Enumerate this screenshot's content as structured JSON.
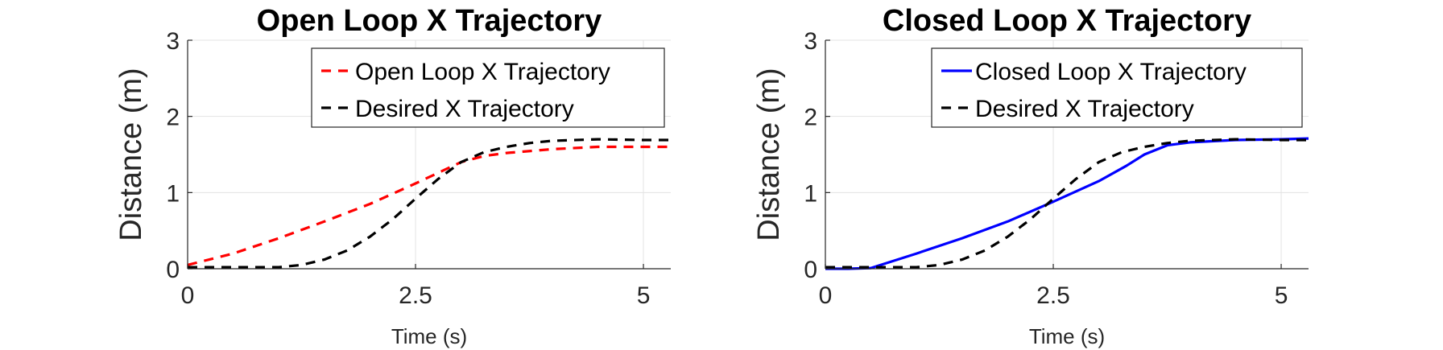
{
  "chart_data": [
    {
      "type": "line",
      "title": "Open Loop X Trajectory",
      "xlabel": "Time (s)",
      "ylabel": "Distance (m)",
      "xlim": [
        0,
        5.3
      ],
      "ylim": [
        0,
        3
      ],
      "xticks": [
        0,
        2.5,
        5
      ],
      "xtick_labels": [
        "0",
        "2.5",
        "5"
      ],
      "yticks": [
        0,
        1,
        2,
        3
      ],
      "ytick_labels": [
        "0",
        "1",
        "2",
        "3"
      ],
      "grid": true,
      "legend": "top-right",
      "series": [
        {
          "name": "Open Loop X Trajectory",
          "color": "#ff0000",
          "style": "dashed",
          "x": [
            0,
            0.5,
            1.0,
            1.5,
            2.0,
            2.5,
            3.0,
            3.25,
            3.5,
            4.0,
            4.5,
            5.0,
            5.3
          ],
          "y": [
            0.05,
            0.2,
            0.4,
            0.62,
            0.85,
            1.12,
            1.4,
            1.48,
            1.52,
            1.57,
            1.6,
            1.6,
            1.6
          ]
        },
        {
          "name": "Desired X Trajectory",
          "color": "#000000",
          "style": "dashed",
          "x": [
            0,
            0.5,
            1.0,
            1.25,
            1.5,
            1.75,
            2.0,
            2.25,
            2.5,
            2.75,
            3.0,
            3.25,
            3.5,
            3.75,
            4.0,
            4.5,
            5.0,
            5.3
          ],
          "y": [
            0.02,
            0.02,
            0.02,
            0.05,
            0.12,
            0.24,
            0.42,
            0.65,
            0.92,
            1.18,
            1.4,
            1.53,
            1.6,
            1.65,
            1.68,
            1.7,
            1.69,
            1.69
          ]
        }
      ]
    },
    {
      "type": "line",
      "title": "Closed Loop X Trajectory",
      "xlabel": "Time (s)",
      "ylabel": "Distance (m)",
      "xlim": [
        0,
        5.3
      ],
      "ylim": [
        0,
        3
      ],
      "xticks": [
        0,
        2.5,
        5
      ],
      "xtick_labels": [
        "0",
        "2.5",
        "5"
      ],
      "yticks": [
        0,
        1,
        2,
        3
      ],
      "ytick_labels": [
        "0",
        "1",
        "2",
        "3"
      ],
      "grid": true,
      "legend": "top-right",
      "series": [
        {
          "name": "Closed Loop X Trajectory",
          "color": "#0000ff",
          "style": "solid",
          "x": [
            0,
            0.25,
            0.5,
            1.0,
            1.5,
            2.0,
            2.5,
            3.0,
            3.3,
            3.5,
            3.75,
            4.0,
            4.5,
            5.0,
            5.3
          ],
          "y": [
            0.0,
            0.0,
            0.01,
            0.2,
            0.4,
            0.62,
            0.88,
            1.15,
            1.35,
            1.5,
            1.62,
            1.66,
            1.69,
            1.7,
            1.71
          ]
        },
        {
          "name": "Desired X Trajectory",
          "color": "#000000",
          "style": "dashed",
          "x": [
            0,
            0.5,
            1.0,
            1.25,
            1.5,
            1.75,
            2.0,
            2.25,
            2.5,
            2.75,
            3.0,
            3.25,
            3.5,
            3.75,
            4.0,
            4.5,
            5.0,
            5.3
          ],
          "y": [
            0.02,
            0.02,
            0.02,
            0.05,
            0.12,
            0.24,
            0.42,
            0.65,
            0.92,
            1.18,
            1.4,
            1.53,
            1.6,
            1.65,
            1.68,
            1.7,
            1.69,
            1.69
          ]
        }
      ]
    }
  ]
}
